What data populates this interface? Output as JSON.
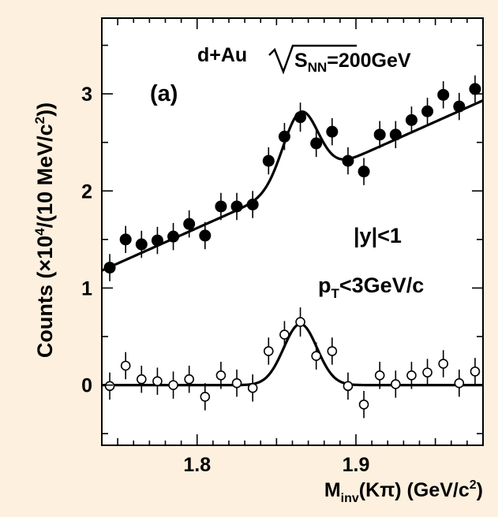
{
  "chart_data": {
    "type": "scatter",
    "panel_label": "(a)",
    "system_label": {
      "prefix": "d+Au",
      "sub": "NN",
      "suffix": "=200GeV"
    },
    "cut_y": "|y|<1",
    "cut_pt": {
      "pre": "p",
      "sub": "T",
      "post": "<3GeV/c"
    },
    "ylabel": {
      "pre": "Counts (×10",
      "sup": "4",
      "mid": "/(10 MeV/c",
      "sup2": "2",
      "post": "))"
    },
    "xlabel": {
      "pre": "M",
      "sub": "inv",
      "mid": "(Kπ) (GeV/c",
      "sup": "2",
      "post": ")"
    },
    "xlim": [
      1.74,
      1.98
    ],
    "ylim": [
      -0.62,
      3.78
    ],
    "x_ticks": [
      {
        "value": 1.8,
        "label": "1.8"
      },
      {
        "value": 1.9,
        "label": "1.9"
      }
    ],
    "y_ticks": [
      {
        "value": 0,
        "label": "0"
      },
      {
        "value": 1,
        "label": "1"
      },
      {
        "value": 2,
        "label": "2"
      },
      {
        "value": 3,
        "label": "3"
      }
    ],
    "series": [
      {
        "marker": "filled",
        "x": [
          1.745,
          1.755,
          1.765,
          1.775,
          1.785,
          1.795,
          1.805,
          1.815,
          1.825,
          1.835,
          1.845,
          1.855,
          1.865,
          1.875,
          1.885,
          1.895,
          1.905,
          1.915,
          1.925,
          1.935,
          1.945,
          1.955,
          1.965,
          1.975
        ],
        "y": [
          1.21,
          1.5,
          1.45,
          1.49,
          1.53,
          1.66,
          1.54,
          1.84,
          1.84,
          1.86,
          2.31,
          2.56,
          2.76,
          2.49,
          2.61,
          2.31,
          2.2,
          2.58,
          2.58,
          2.73,
          2.82,
          2.99,
          2.87,
          3.05
        ],
        "err": [
          0.14,
          0.14,
          0.14,
          0.14,
          0.14,
          0.14,
          0.14,
          0.14,
          0.14,
          0.14,
          0.14,
          0.14,
          0.15,
          0.14,
          0.14,
          0.14,
          0.14,
          0.14,
          0.14,
          0.14,
          0.14,
          0.14,
          0.14,
          0.14
        ]
      },
      {
        "marker": "open",
        "x": [
          1.745,
          1.755,
          1.765,
          1.775,
          1.785,
          1.795,
          1.805,
          1.815,
          1.825,
          1.835,
          1.845,
          1.855,
          1.865,
          1.875,
          1.885,
          1.895,
          1.905,
          1.915,
          1.925,
          1.935,
          1.945,
          1.955,
          1.965,
          1.975
        ],
        "y": [
          -0.01,
          0.2,
          0.06,
          0.04,
          0.0,
          0.06,
          -0.12,
          0.1,
          0.02,
          -0.03,
          0.35,
          0.52,
          0.65,
          0.3,
          0.35,
          -0.01,
          -0.2,
          0.1,
          0.01,
          0.1,
          0.13,
          0.22,
          0.02,
          0.14
        ],
        "err": [
          0.14,
          0.14,
          0.14,
          0.14,
          0.14,
          0.14,
          0.14,
          0.14,
          0.14,
          0.14,
          0.14,
          0.14,
          0.15,
          0.14,
          0.14,
          0.14,
          0.14,
          0.14,
          0.14,
          0.14,
          0.14,
          0.14,
          0.14,
          0.14
        ]
      }
    ],
    "fits": [
      {
        "model": "linear + gaussian",
        "intercept_at_1_74": 1.18,
        "slope": 7.3,
        "amplitude": 0.72,
        "mean": 1.865,
        "sigma": 0.011,
        "range": [
          1.74,
          1.98
        ]
      },
      {
        "model": "gaussian",
        "intercept_at_1_74": 0.0,
        "slope": 0.0,
        "amplitude": 0.63,
        "mean": 1.865,
        "sigma": 0.0105,
        "range": [
          1.74,
          1.98
        ]
      }
    ]
  }
}
